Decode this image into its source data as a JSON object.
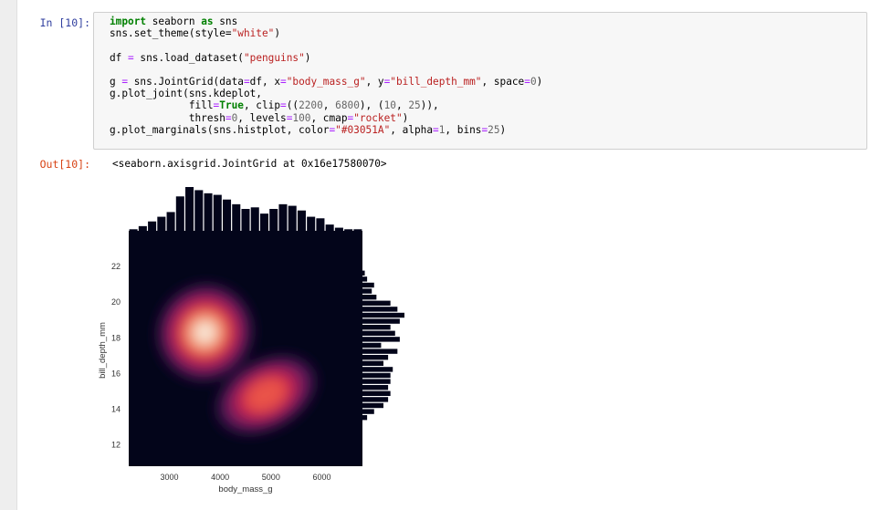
{
  "cell_in": {
    "prompt": "In [10]:",
    "code_lines": [
      [
        [
          "kw",
          "import"
        ],
        [
          "t",
          " seaborn "
        ],
        [
          "kw",
          "as"
        ],
        [
          "t",
          " sns"
        ]
      ],
      [
        [
          "t",
          "sns.set_theme(style="
        ],
        [
          "str",
          "\"white\""
        ],
        [
          "t",
          ")"
        ]
      ],
      [],
      [
        [
          "t",
          "df "
        ],
        [
          "op",
          "="
        ],
        [
          "t",
          " sns.load_dataset("
        ],
        [
          "str",
          "\"penguins\""
        ],
        [
          "t",
          ")"
        ]
      ],
      [],
      [
        [
          "t",
          "g "
        ],
        [
          "op",
          "="
        ],
        [
          "t",
          " sns.JointGrid(data"
        ],
        [
          "op",
          "="
        ],
        [
          "t",
          "df, x"
        ],
        [
          "op",
          "="
        ],
        [
          "str",
          "\"body_mass_g\""
        ],
        [
          "t",
          ", y"
        ],
        [
          "op",
          "="
        ],
        [
          "str",
          "\"bill_depth_mm\""
        ],
        [
          "t",
          ", space"
        ],
        [
          "op",
          "="
        ],
        [
          "num",
          "0"
        ],
        [
          "t",
          ")"
        ]
      ],
      [
        [
          "t",
          "g.plot_joint(sns.kdeplot,"
        ]
      ],
      [
        [
          "t",
          "             fill"
        ],
        [
          "op",
          "="
        ],
        [
          "kw",
          "True"
        ],
        [
          "t",
          ", clip"
        ],
        [
          "op",
          "="
        ],
        [
          "t",
          "(("
        ],
        [
          "num",
          "2200"
        ],
        [
          "t",
          ", "
        ],
        [
          "num",
          "6800"
        ],
        [
          "t",
          "), ("
        ],
        [
          "num",
          "10"
        ],
        [
          "t",
          ", "
        ],
        [
          "num",
          "25"
        ],
        [
          "t",
          ")),"
        ]
      ],
      [
        [
          "t",
          "             thresh"
        ],
        [
          "op",
          "="
        ],
        [
          "num",
          "0"
        ],
        [
          "t",
          ", levels"
        ],
        [
          "op",
          "="
        ],
        [
          "num",
          "100"
        ],
        [
          "t",
          ", cmap"
        ],
        [
          "op",
          "="
        ],
        [
          "str",
          "\"rocket\""
        ],
        [
          "t",
          ")"
        ]
      ],
      [
        [
          "t",
          "g.plot_marginals(sns.histplot, color"
        ],
        [
          "op",
          "="
        ],
        [
          "str",
          "\"#03051A\""
        ],
        [
          "t",
          ", alpha"
        ],
        [
          "op",
          "="
        ],
        [
          "num",
          "1"
        ],
        [
          "t",
          ", bins"
        ],
        [
          "op",
          "="
        ],
        [
          "num",
          "25"
        ],
        [
          "t",
          ")"
        ]
      ]
    ]
  },
  "cell_out": {
    "prompt": "Out[10]:",
    "repr": "<seaborn.axisgrid.JointGrid at 0x16e17580070>"
  },
  "chart_data": {
    "type": "heatmap",
    "xlabel": "body_mass_g",
    "ylabel": "bill_depth_mm",
    "xlim": [
      2200,
      6800
    ],
    "ylim": [
      10.8,
      24.0
    ],
    "xticks": [
      3000,
      4000,
      5000,
      6000
    ],
    "yticks": [
      12,
      14,
      16,
      18,
      20,
      22
    ],
    "background_color": "#03051a",
    "kde_peaks": [
      {
        "x": 3700,
        "y": 18.3,
        "relative_density": 1.0
      },
      {
        "x": 4900,
        "y": 14.8,
        "relative_density": 0.6
      }
    ],
    "marginal_x_hist": {
      "bins": 25,
      "color": "#03051a",
      "counts": [
        1,
        3,
        6,
        9,
        12,
        22,
        28,
        26,
        24,
        23,
        20,
        17,
        14,
        15,
        11,
        14,
        17,
        16,
        13,
        9,
        8,
        4,
        2,
        1,
        1
      ]
    },
    "marginal_y_hist": {
      "bins": 25,
      "color": "#03051a",
      "counts": [
        2,
        5,
        9,
        11,
        12,
        11,
        12,
        12,
        13,
        9,
        11,
        15,
        8,
        16,
        14,
        12,
        16,
        18,
        15,
        12,
        6,
        4,
        5,
        2,
        1
      ]
    }
  }
}
